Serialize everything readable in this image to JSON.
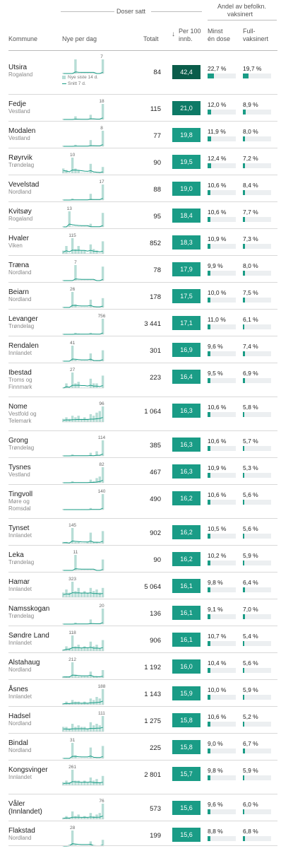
{
  "header": {
    "doses_group": "Doser satt",
    "share_group_line1": "Andel av befolkn.",
    "share_group_line2": "vaksinert",
    "col_kommune": "Kommune",
    "col_new_per_day": "Nye per dag",
    "col_total": "Totalt",
    "sort_icon": "arrow-down-icon",
    "col_per100_line1": "Per 100",
    "col_per100_line2": "innb.",
    "col_first_line1": "Minst",
    "col_first_line2": "én dose",
    "col_full_line1": "Full-",
    "col_full_line2": "vaksinert"
  },
  "legend": {
    "bars": "Nye siste 14 d.",
    "line": "Snitt 7 d."
  },
  "colors": {
    "accent": "#1a9c86",
    "accent_dark": "#0a5c4a",
    "bar_light": "#b7ddd6",
    "track": "#eceff1"
  },
  "rows": [
    {
      "name": "Utsira",
      "county": [
        "Rogaland"
      ],
      "peak": "7",
      "total": "84",
      "rate": "42,4",
      "first": "22,7 %",
      "full": "19,7 %",
      "first_v": 22.7,
      "full_v": 19.7,
      "bars": [
        0,
        0,
        0,
        0,
        1,
        0,
        0,
        0,
        0,
        0,
        0,
        0,
        0,
        1
      ],
      "top": true
    },
    {
      "name": "Fedje",
      "county": [
        "Vestland"
      ],
      "peak": "18",
      "total": "115",
      "rate": "21,0",
      "first": "12,0 %",
      "full": "8,9 %",
      "first_v": 12.0,
      "full_v": 8.9,
      "bars": [
        0,
        0,
        0,
        0,
        0.2,
        0,
        0,
        0,
        0,
        0.3,
        0,
        0,
        0,
        1
      ]
    },
    {
      "name": "Modalen",
      "county": [
        "Vestland"
      ],
      "peak": "8",
      "total": "77",
      "rate": "19,8",
      "first": "11,9 %",
      "full": "8,0 %",
      "first_v": 11.9,
      "full_v": 8.0,
      "bars": [
        0,
        0,
        0,
        0,
        0.1,
        0,
        0,
        0,
        0,
        0.4,
        0,
        0,
        0,
        1
      ]
    },
    {
      "name": "Røyrvik",
      "county": [
        "Trøndelag"
      ],
      "peak": "10",
      "total": "90",
      "rate": "19,5",
      "first": "12,4 %",
      "full": "7,2 %",
      "first_v": 12.4,
      "full_v": 7.2,
      "bars": [
        0.3,
        0.2,
        0,
        1,
        0.3,
        0.2,
        0,
        0,
        0,
        0.6,
        0,
        0,
        0,
        0.4
      ]
    },
    {
      "name": "Vevelstad",
      "county": [
        "Nordland"
      ],
      "peak": "17",
      "total": "88",
      "rate": "19,0",
      "first": "10,6 %",
      "full": "8,4 %",
      "first_v": 10.6,
      "full_v": 8.4,
      "bars": [
        0,
        0,
        0,
        0.1,
        0,
        0,
        0,
        0,
        0,
        0.4,
        0,
        0,
        0,
        1
      ]
    },
    {
      "name": "Kvitsøy",
      "county": [
        "Rogaland"
      ],
      "peak": "13",
      "total": "95",
      "rate": "18,4",
      "first": "10,6 %",
      "full": "7,7 %",
      "first_v": 10.6,
      "full_v": 7.7,
      "bars": [
        0,
        0,
        1,
        0,
        0,
        0,
        0,
        0,
        0,
        0.2,
        0,
        0,
        0,
        0.9
      ]
    },
    {
      "name": "Hvaler",
      "county": [
        "Viken"
      ],
      "peak": "115",
      "total": "852",
      "rate": "18,3",
      "first": "10,9 %",
      "full": "7,3 %",
      "first_v": 10.9,
      "full_v": 7.3,
      "bars": [
        0.2,
        0.5,
        0,
        1,
        0.3,
        0.5,
        0.2,
        0.2,
        0,
        0.6,
        0.3,
        0.2,
        0,
        0.8
      ]
    },
    {
      "name": "Træna",
      "county": [
        "Nordland"
      ],
      "peak": "7",
      "total": "78",
      "rate": "17,9",
      "first": "9,9 %",
      "full": "8,0 %",
      "first_v": 9.9,
      "full_v": 8.0,
      "bars": [
        0,
        0,
        0,
        0,
        1,
        0,
        0,
        0,
        0,
        0,
        0,
        0,
        0,
        0.9
      ]
    },
    {
      "name": "Beiarn",
      "county": [
        "Nordland"
      ],
      "peak": "26",
      "total": "178",
      "rate": "17,5",
      "first": "10,0 %",
      "full": "7,5 %",
      "first_v": 10.0,
      "full_v": 7.5,
      "bars": [
        0,
        0,
        0,
        1,
        0.2,
        0,
        0,
        0,
        0,
        0.5,
        0,
        0,
        0,
        0.6
      ]
    },
    {
      "name": "Levanger",
      "county": [
        "Trøndelag"
      ],
      "peak": "756",
      "total": "3 441",
      "rate": "17,1",
      "first": "11,0 %",
      "full": "6,1 %",
      "first_v": 11.0,
      "full_v": 6.1,
      "bars": [
        0,
        0,
        0,
        0,
        0.1,
        0.05,
        0,
        0,
        0,
        0.1,
        0,
        0,
        0,
        1
      ]
    },
    {
      "name": "Rendalen",
      "county": [
        "Innlandet"
      ],
      "peak": "41",
      "total": "301",
      "rate": "16,9",
      "first": "9,6 %",
      "full": "7,4 %",
      "first_v": 9.6,
      "full_v": 7.4,
      "bars": [
        0,
        0,
        0,
        1,
        0.1,
        0,
        0,
        0,
        0,
        0.5,
        0,
        0,
        0,
        0.7
      ]
    },
    {
      "name": "Ibestad",
      "county": [
        "Troms og",
        "Finnmark"
      ],
      "peak": "27",
      "total": "223",
      "rate": "16,4",
      "first": "9,5 %",
      "full": "6,9 %",
      "first_v": 9.5,
      "full_v": 6.9,
      "bars": [
        0,
        0.3,
        0,
        1,
        0.3,
        0.4,
        0,
        0,
        0,
        0.6,
        0.3,
        0.3,
        0,
        0.8
      ]
    },
    {
      "name": "Nome",
      "county": [
        "Vestfold og",
        "Telemark"
      ],
      "peak": "96",
      "total": "1 064",
      "rate": "16,3",
      "first": "10,6 %",
      "full": "5,8 %",
      "first_v": 10.6,
      "full_v": 5.8,
      "bars": [
        0.2,
        0.3,
        0.2,
        0.4,
        0.3,
        0.4,
        0.2,
        0.3,
        0.2,
        0.5,
        0.4,
        0.6,
        0.7,
        1
      ]
    },
    {
      "name": "Grong",
      "county": [
        "Trøndelag"
      ],
      "peak": "114",
      "total": "385",
      "rate": "16,3",
      "first": "10,6 %",
      "full": "5,7 %",
      "first_v": 10.6,
      "full_v": 5.7,
      "bars": [
        0,
        0,
        0,
        0.1,
        0,
        0,
        0,
        0,
        0,
        0.2,
        0,
        0.3,
        0,
        1
      ]
    },
    {
      "name": "Tysnes",
      "county": [
        "Vestland"
      ],
      "peak": "82",
      "total": "467",
      "rate": "16,3",
      "first": "10,9 %",
      "full": "5,3 %",
      "first_v": 10.9,
      "full_v": 5.3,
      "bars": [
        0,
        0,
        0,
        0.1,
        0,
        0,
        0,
        0,
        0,
        0.2,
        0.1,
        0.3,
        0.4,
        1
      ]
    },
    {
      "name": "Tingvoll",
      "county": [
        "Møre og",
        "Romsdal"
      ],
      "peak": "140",
      "total": "490",
      "rate": "16,2",
      "first": "10,6 %",
      "full": "5,6 %",
      "first_v": 10.6,
      "full_v": 5.6,
      "bars": [
        0,
        0,
        0,
        0,
        0,
        0,
        0,
        0,
        0,
        0.1,
        0,
        0,
        0,
        1
      ]
    },
    {
      "name": "Tynset",
      "county": [
        "Innlandet"
      ],
      "peak": "145",
      "total": "902",
      "rate": "16,2",
      "first": "10,5 %",
      "full": "5,6 %",
      "first_v": 10.5,
      "full_v": 5.6,
      "bars": [
        0.1,
        0.1,
        0,
        1,
        0.1,
        0.1,
        0,
        0,
        0.1,
        0.7,
        0.1,
        0.1,
        0,
        0.8
      ]
    },
    {
      "name": "Leka",
      "county": [
        "Trøndelag"
      ],
      "peak": "11",
      "total": "90",
      "rate": "16,2",
      "first": "10,2 %",
      "full": "5,9 %",
      "first_v": 10.2,
      "full_v": 5.9,
      "bars": [
        0,
        0,
        0,
        0,
        1,
        0,
        0,
        0,
        0,
        0,
        0,
        0,
        0,
        0.7
      ]
    },
    {
      "name": "Hamar",
      "county": [
        "Innlandet"
      ],
      "peak": "323",
      "total": "5 064",
      "rate": "16,1",
      "first": "9,8 %",
      "full": "6,4 %",
      "first_v": 9.8,
      "full_v": 6.4,
      "bars": [
        0.3,
        0.5,
        0.3,
        1,
        0.4,
        0.6,
        0.3,
        0.4,
        0.3,
        0.6,
        0.4,
        0.5,
        0.3,
        0.6
      ]
    },
    {
      "name": "Namsskogan",
      "county": [
        "Trøndelag"
      ],
      "peak": "20",
      "total": "136",
      "rate": "16,1",
      "first": "9,1 %",
      "full": "7,0 %",
      "first_v": 9.1,
      "full_v": 7.0,
      "bars": [
        0,
        0,
        0,
        0,
        0.1,
        0,
        0,
        0,
        0,
        0.3,
        0,
        0,
        0,
        1
      ]
    },
    {
      "name": "Søndre Land",
      "county": [
        "Innlandet"
      ],
      "peak": "118",
      "total": "906",
      "rate": "16,1",
      "first": "10,7 %",
      "full": "5,4 %",
      "first_v": 10.7,
      "full_v": 5.4,
      "bars": [
        0.1,
        0.3,
        0.2,
        1,
        0.3,
        0.4,
        0.2,
        0.3,
        0.2,
        0.6,
        0.3,
        0.4,
        0.2,
        0.7
      ]
    },
    {
      "name": "Alstahaug",
      "county": [
        "Nordland"
      ],
      "peak": "212",
      "total": "1 192",
      "rate": "16,0",
      "first": "10,4 %",
      "full": "5,6 %",
      "first_v": 10.4,
      "full_v": 5.6,
      "bars": [
        0.1,
        0.1,
        0.1,
        1,
        0.2,
        0.1,
        0.1,
        0.1,
        0.1,
        0.4,
        0.1,
        0.1,
        0,
        0.5
      ]
    },
    {
      "name": "Åsnes",
      "county": [
        "Innlandet"
      ],
      "peak": "188",
      "total": "1 143",
      "rate": "15,9",
      "first": "10,0 %",
      "full": "5,9 %",
      "first_v": 10.0,
      "full_v": 5.9,
      "bars": [
        0.1,
        0.2,
        0.1,
        0.3,
        0.2,
        0.2,
        0.1,
        0.2,
        0.1,
        0.4,
        0.3,
        0.5,
        0.4,
        1
      ]
    },
    {
      "name": "Hadsel",
      "county": [
        "Nordland"
      ],
      "peak": "111",
      "total": "1 275",
      "rate": "15,8",
      "first": "10,6 %",
      "full": "5,2 %",
      "first_v": 10.6,
      "full_v": 5.2,
      "bars": [
        0.3,
        0.3,
        0.2,
        0.5,
        0.3,
        0.4,
        0.3,
        0.3,
        0.2,
        0.6,
        0.4,
        0.5,
        0.4,
        1
      ]
    },
    {
      "name": "Bindal",
      "county": [
        "Nordland"
      ],
      "peak": "31",
      "total": "225",
      "rate": "15,8",
      "first": "9,0 %",
      "full": "6,7 %",
      "first_v": 9.0,
      "full_v": 6.7,
      "bars": [
        0,
        0,
        0,
        1,
        0.2,
        0,
        0,
        0,
        0,
        0.7,
        0,
        0,
        0,
        0.8
      ]
    },
    {
      "name": "Kongsvinger",
      "county": [
        "Innlandet"
      ],
      "peak": "261",
      "total": "2 801",
      "rate": "15,7",
      "first": "9,8 %",
      "full": "5,9 %",
      "first_v": 9.8,
      "full_v": 5.9,
      "bars": [
        0.2,
        0.3,
        0.2,
        1,
        0.3,
        0.3,
        0.2,
        0.3,
        0.2,
        0.5,
        0.3,
        0.4,
        0.2,
        0.6
      ]
    },
    {
      "name": "Våler",
      "county": [],
      "name2": "(Innlandet)",
      "peak": "76",
      "total": "573",
      "rate": "15,6",
      "first": "9,6 %",
      "full": "6,0 %",
      "first_v": 9.6,
      "full_v": 6.0,
      "bars": [
        0.1,
        0.2,
        0.1,
        0.5,
        0.2,
        0.3,
        0.1,
        0.2,
        0.1,
        0.4,
        0.2,
        0.3,
        0.4,
        1
      ]
    },
    {
      "name": "Flakstad",
      "county": [
        "Nordland"
      ],
      "peak": "28",
      "total": "199",
      "rate": "15,6",
      "first": "8,8 %",
      "full": "6,8 %",
      "first_v": 8.8,
      "full_v": 6.8,
      "bars": [
        0,
        0,
        0.1,
        1,
        0.1,
        0,
        0,
        0,
        0,
        0.3,
        0,
        0,
        0,
        0.4
      ]
    }
  ]
}
